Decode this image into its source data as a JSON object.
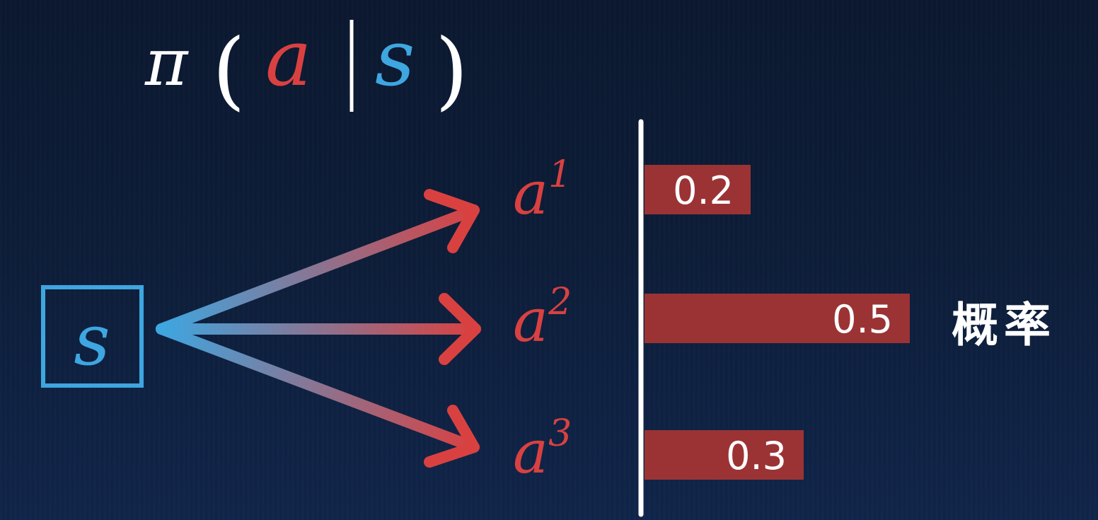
{
  "formula": {
    "pi": "π",
    "open_paren": "(",
    "action": "a",
    "bar": "|",
    "state": "s",
    "close_paren": ")"
  },
  "state": {
    "label": "s"
  },
  "actions": [
    {
      "base": "a",
      "sup": "1"
    },
    {
      "base": "a",
      "sup": "2"
    },
    {
      "base": "a",
      "sup": "3"
    }
  ],
  "probability_label": "概率",
  "chart_data": {
    "type": "bar",
    "orientation": "horizontal",
    "categories": [
      "a1",
      "a2",
      "a3"
    ],
    "values": [
      0.2,
      0.5,
      0.3
    ],
    "value_labels": [
      "0.2",
      "0.5",
      "0.3"
    ],
    "xlim": [
      0,
      0.5
    ],
    "title": "",
    "xlabel": "概率",
    "ylabel": ""
  },
  "colors": {
    "state_blue": "#3ea6e0",
    "action_red": "#d94141",
    "bar_fill": "#9b3335",
    "text_white": "#ffffff"
  }
}
